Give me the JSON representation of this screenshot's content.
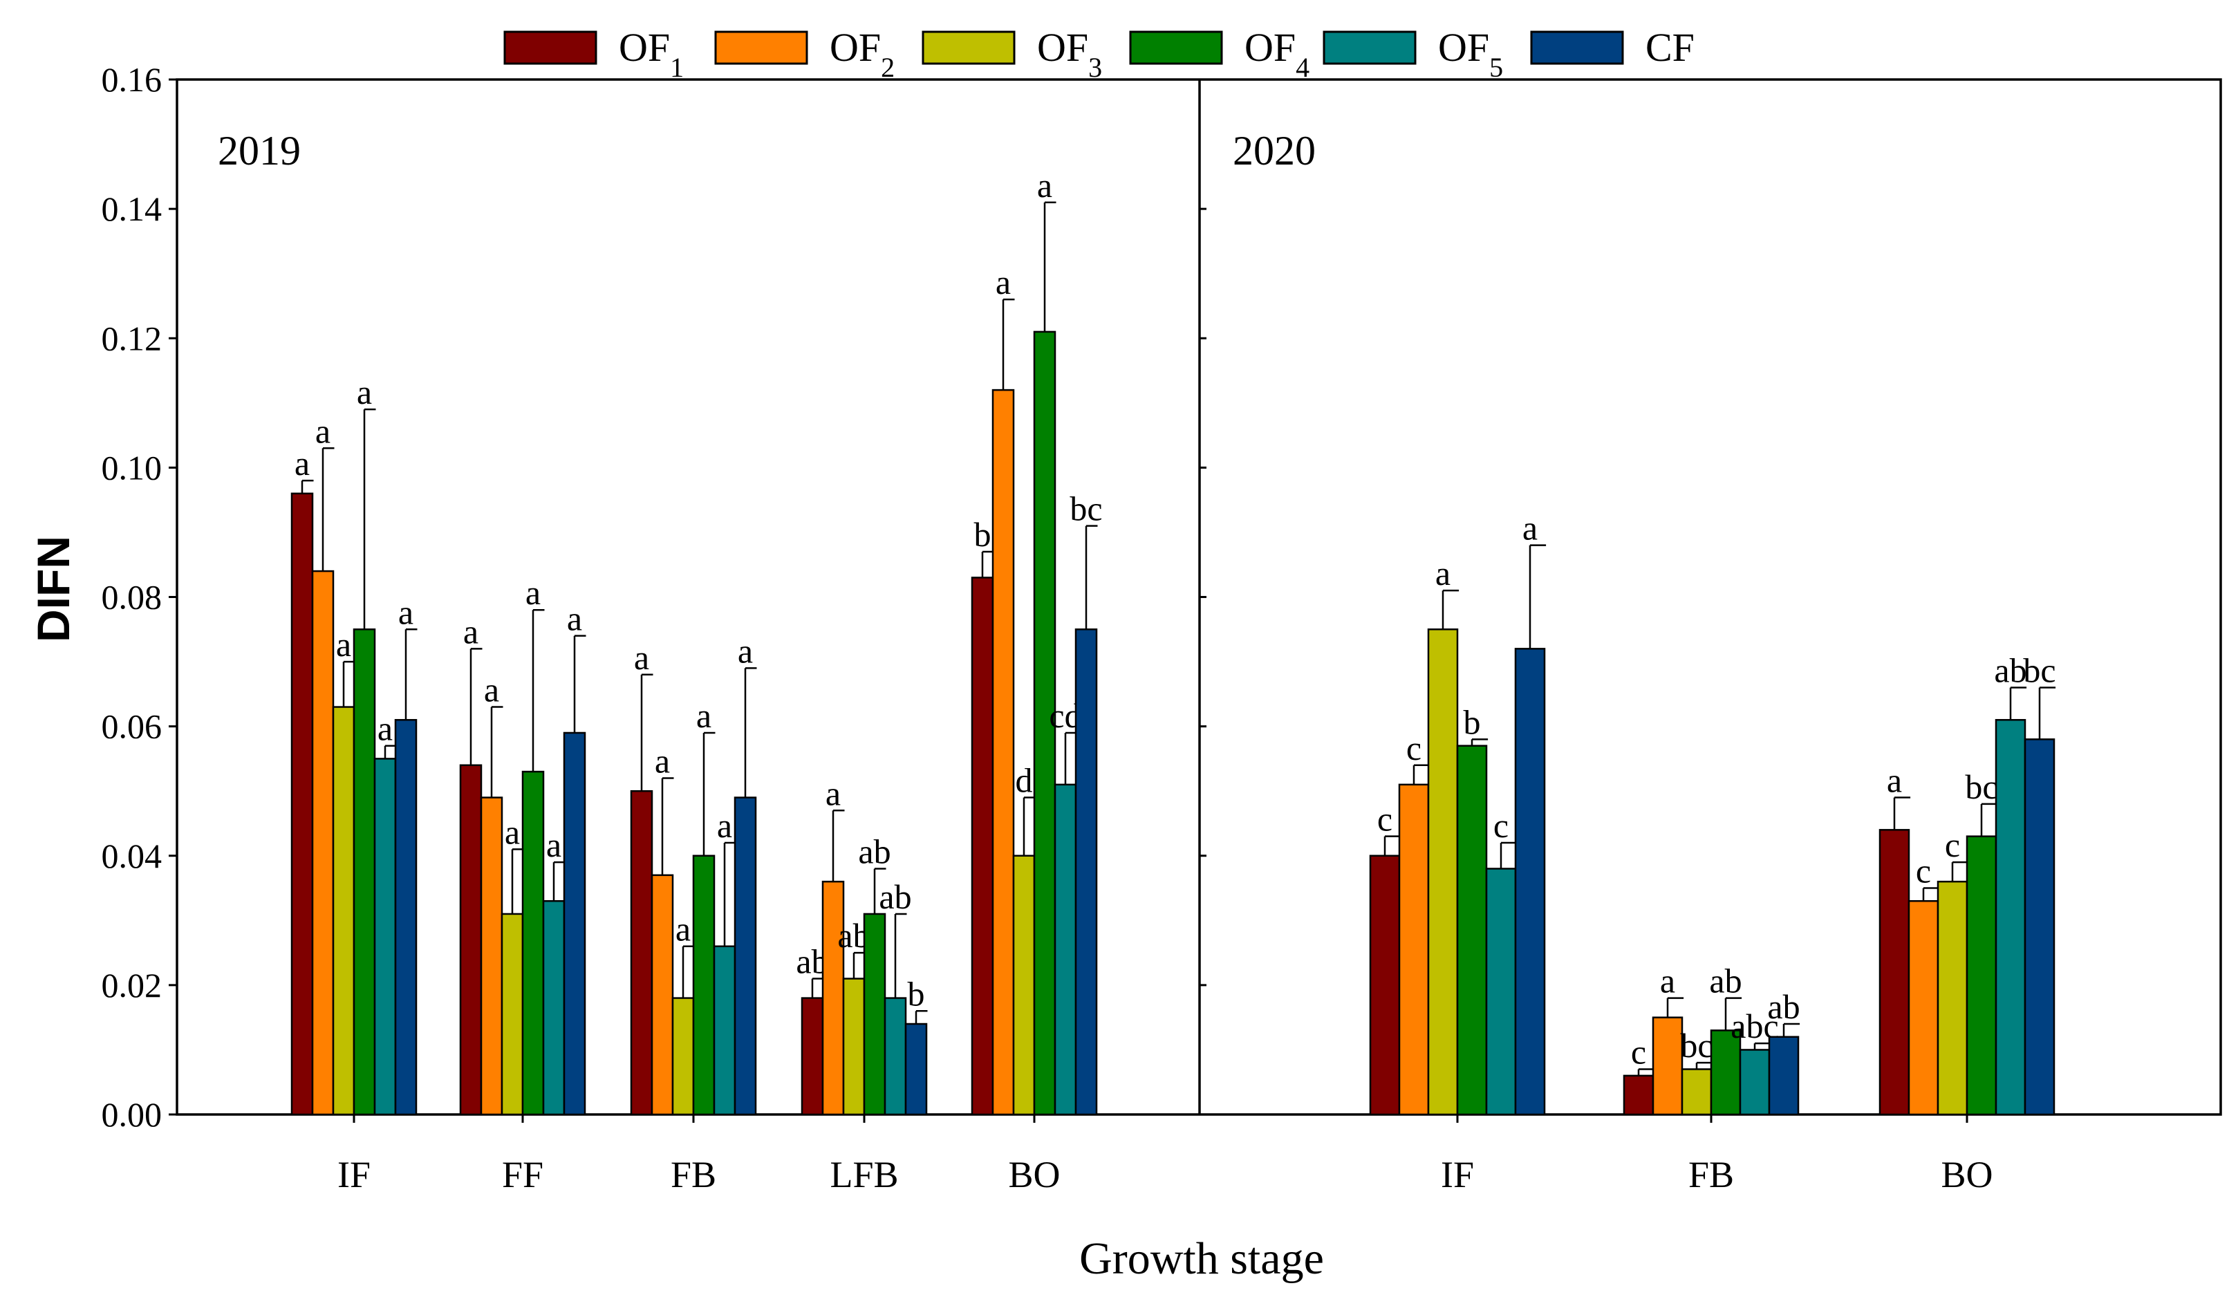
{
  "chart_data": {
    "type": "bar",
    "ylabel": "DIFN",
    "xlabel": "Growth stage",
    "ylim": [
      0,
      0.16
    ],
    "yticks": [
      "0.00",
      "0.02",
      "0.04",
      "0.06",
      "0.08",
      "0.10",
      "0.12",
      "0.14",
      "0.16"
    ],
    "legend": {
      "placement": "top-center",
      "entries": [
        {
          "key": "OF1",
          "base": "OF",
          "sub": "1",
          "color": "#7f0000"
        },
        {
          "key": "OF2",
          "base": "OF",
          "sub": "2",
          "color": "#ff8000"
        },
        {
          "key": "OF3",
          "base": "OF",
          "sub": "3",
          "color": "#bfbf00"
        },
        {
          "key": "OF4",
          "base": "OF",
          "sub": "4",
          "color": "#008000"
        },
        {
          "key": "OF5",
          "base": "OF",
          "sub": "5",
          "color": "#008080"
        },
        {
          "key": "CF",
          "base": "CF",
          "sub": "",
          "color": "#004080"
        }
      ]
    },
    "panels": [
      {
        "title": "2019",
        "categories": [
          "IF",
          "FF",
          "FB",
          "LFB",
          "BO"
        ],
        "series": [
          {
            "name": "OF1",
            "values": [
              0.096,
              0.054,
              0.05,
              0.018,
              0.083
            ],
            "errors": [
              0.002,
              0.018,
              0.018,
              0.003,
              0.004
            ],
            "labels": [
              "a",
              "a",
              "a",
              "ab",
              "b"
            ]
          },
          {
            "name": "OF2",
            "values": [
              0.084,
              0.049,
              0.037,
              0.036,
              0.112
            ],
            "errors": [
              0.019,
              0.014,
              0.015,
              0.011,
              0.014
            ],
            "labels": [
              "a",
              "a",
              "a",
              "a",
              "a"
            ]
          },
          {
            "name": "OF3",
            "values": [
              0.063,
              0.031,
              0.018,
              0.021,
              0.04
            ],
            "errors": [
              0.007,
              0.01,
              0.008,
              0.004,
              0.009
            ],
            "labels": [
              "a",
              "a",
              "a",
              "ab",
              "d"
            ]
          },
          {
            "name": "OF4",
            "values": [
              0.075,
              0.053,
              0.04,
              0.031,
              0.121
            ],
            "errors": [
              0.034,
              0.025,
              0.019,
              0.007,
              0.02
            ],
            "labels": [
              "a",
              "a",
              "a",
              "ab",
              "a"
            ]
          },
          {
            "name": "OF5",
            "values": [
              0.055,
              0.033,
              0.026,
              0.018,
              0.051
            ],
            "errors": [
              0.002,
              0.006,
              0.016,
              0.013,
              0.008
            ],
            "labels": [
              "a",
              "a",
              "a",
              "ab",
              "cd"
            ]
          },
          {
            "name": "CF",
            "values": [
              0.061,
              0.059,
              0.049,
              0.014,
              0.075
            ],
            "errors": [
              0.014,
              0.015,
              0.02,
              0.002,
              0.016
            ],
            "labels": [
              "a",
              "a",
              "a",
              "b",
              "bc"
            ]
          }
        ]
      },
      {
        "title": "2020",
        "categories": [
          "IF",
          "FB",
          "BO"
        ],
        "series": [
          {
            "name": "OF1",
            "values": [
              0.04,
              0.006,
              0.044
            ],
            "errors": [
              0.003,
              0.001,
              0.005
            ],
            "labels": [
              "c",
              "c",
              "a"
            ]
          },
          {
            "name": "OF2",
            "values": [
              0.051,
              0.015,
              0.033
            ],
            "errors": [
              0.003,
              0.003,
              0.002
            ],
            "labels": [
              "c",
              "a",
              "c"
            ]
          },
          {
            "name": "OF3",
            "values": [
              0.075,
              0.007,
              0.036
            ],
            "errors": [
              0.006,
              0.001,
              0.003
            ],
            "labels": [
              "a",
              "bc",
              "c"
            ]
          },
          {
            "name": "OF4",
            "values": [
              0.057,
              0.013,
              0.043
            ],
            "errors": [
              0.001,
              0.005,
              0.005
            ],
            "labels": [
              "b",
              "ab",
              "bc"
            ]
          },
          {
            "name": "OF5",
            "values": [
              0.038,
              0.01,
              0.061
            ],
            "errors": [
              0.004,
              0.001,
              0.005
            ],
            "labels": [
              "c",
              "abc",
              "ab"
            ]
          },
          {
            "name": "CF",
            "values": [
              0.072,
              0.012,
              0.058
            ],
            "errors": [
              0.016,
              0.002,
              0.008
            ],
            "labels": [
              "a",
              "ab",
              "bc"
            ]
          }
        ]
      }
    ]
  }
}
